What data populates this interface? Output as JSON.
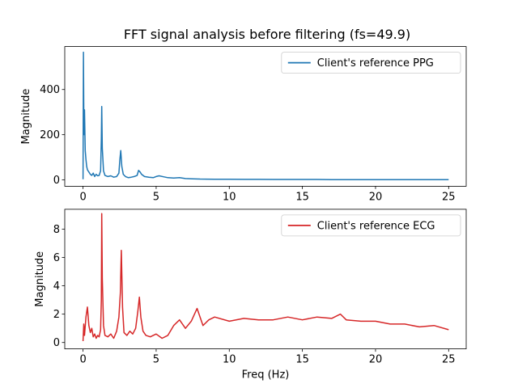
{
  "figure": {
    "title": "FFT signal analysis before filtering (fs=49.9)"
  },
  "chart_data": [
    {
      "type": "line",
      "title": "FFT signal analysis before filtering (fs=49.9)",
      "xlabel": "",
      "ylabel": "Magnitude",
      "xlim": [
        -1.25,
        26.2
      ],
      "ylim": [
        -28,
        590
      ],
      "xticks": [
        0,
        5,
        10,
        15,
        20,
        25
      ],
      "yticks": [
        0,
        200,
        400
      ],
      "legend_position": "upper right",
      "grid": false,
      "series": [
        {
          "name": "Client's reference PPG",
          "color": "#1f77b4",
          "x": [
            0,
            0.03,
            0.06,
            0.1,
            0.15,
            0.2,
            0.25,
            0.3,
            0.4,
            0.5,
            0.6,
            0.7,
            0.8,
            0.9,
            1.0,
            1.1,
            1.2,
            1.25,
            1.28,
            1.32,
            1.4,
            1.5,
            1.7,
            1.9,
            2.1,
            2.3,
            2.45,
            2.52,
            2.58,
            2.65,
            2.75,
            2.9,
            3.1,
            3.3,
            3.5,
            3.7,
            3.8,
            3.9,
            4.0,
            4.2,
            4.5,
            4.8,
            5.0,
            5.2,
            5.5,
            5.8,
            6.2,
            6.6,
            7.0,
            7.5,
            8,
            9,
            10,
            11,
            12,
            13,
            14,
            15,
            16,
            17,
            18,
            19,
            20,
            21,
            22,
            23,
            24,
            25
          ],
          "y": [
            3,
            565,
            200,
            310,
            130,
            90,
            60,
            45,
            35,
            25,
            20,
            30,
            15,
            25,
            18,
            20,
            40,
            180,
            325,
            140,
            40,
            20,
            15,
            18,
            12,
            15,
            30,
            90,
            130,
            60,
            25,
            15,
            10,
            12,
            15,
            20,
            42,
            35,
            25,
            15,
            12,
            10,
            15,
            18,
            14,
            10,
            8,
            10,
            6,
            5,
            4,
            3,
            3,
            2.5,
            2.5,
            2,
            2,
            2,
            2,
            1.5,
            1.5,
            1.5,
            1.5,
            1.2,
            1.2,
            1.2,
            1,
            1
          ]
        }
      ]
    },
    {
      "type": "line",
      "title": "",
      "xlabel": "Freq (Hz)",
      "ylabel": "Magnitude",
      "xlim": [
        -1.25,
        26.2
      ],
      "ylim": [
        -0.45,
        9.4
      ],
      "xticks": [
        0,
        5,
        10,
        15,
        20,
        25
      ],
      "yticks": [
        0,
        2,
        4,
        6,
        8
      ],
      "legend_position": "upper right",
      "grid": false,
      "series": [
        {
          "name": "Client's reference ECG",
          "color": "#d62728",
          "x": [
            0,
            0.05,
            0.1,
            0.2,
            0.3,
            0.4,
            0.5,
            0.6,
            0.7,
            0.8,
            0.9,
            1.0,
            1.1,
            1.2,
            1.25,
            1.28,
            1.32,
            1.4,
            1.5,
            1.7,
            1.9,
            2.1,
            2.3,
            2.45,
            2.55,
            2.62,
            2.7,
            2.8,
            3.0,
            3.2,
            3.4,
            3.6,
            3.75,
            3.85,
            3.95,
            4.1,
            4.3,
            4.6,
            5.0,
            5.4,
            5.8,
            6.2,
            6.6,
            7.0,
            7.4,
            7.8,
            8.2,
            8.6,
            9,
            10,
            11,
            12,
            13,
            14,
            15,
            16,
            17,
            17.6,
            18,
            19,
            20,
            21,
            22,
            23,
            24,
            25
          ],
          "y": [
            0.1,
            1.3,
            0.5,
            1.8,
            2.5,
            1.2,
            0.7,
            1.0,
            0.4,
            0.6,
            0.3,
            0.5,
            0.4,
            0.9,
            3.0,
            9.1,
            4.5,
            1.2,
            0.5,
            0.4,
            0.6,
            0.3,
            0.8,
            1.8,
            3.5,
            6.5,
            2.5,
            0.7,
            0.5,
            0.8,
            0.6,
            1.0,
            2.2,
            3.2,
            1.8,
            0.8,
            0.5,
            0.4,
            0.6,
            0.3,
            0.5,
            1.2,
            1.6,
            1.0,
            1.5,
            2.4,
            1.2,
            1.6,
            1.8,
            1.5,
            1.7,
            1.6,
            1.6,
            1.8,
            1.6,
            1.8,
            1.7,
            2.0,
            1.6,
            1.5,
            1.5,
            1.3,
            1.3,
            1.1,
            1.2,
            0.9
          ]
        }
      ]
    }
  ]
}
